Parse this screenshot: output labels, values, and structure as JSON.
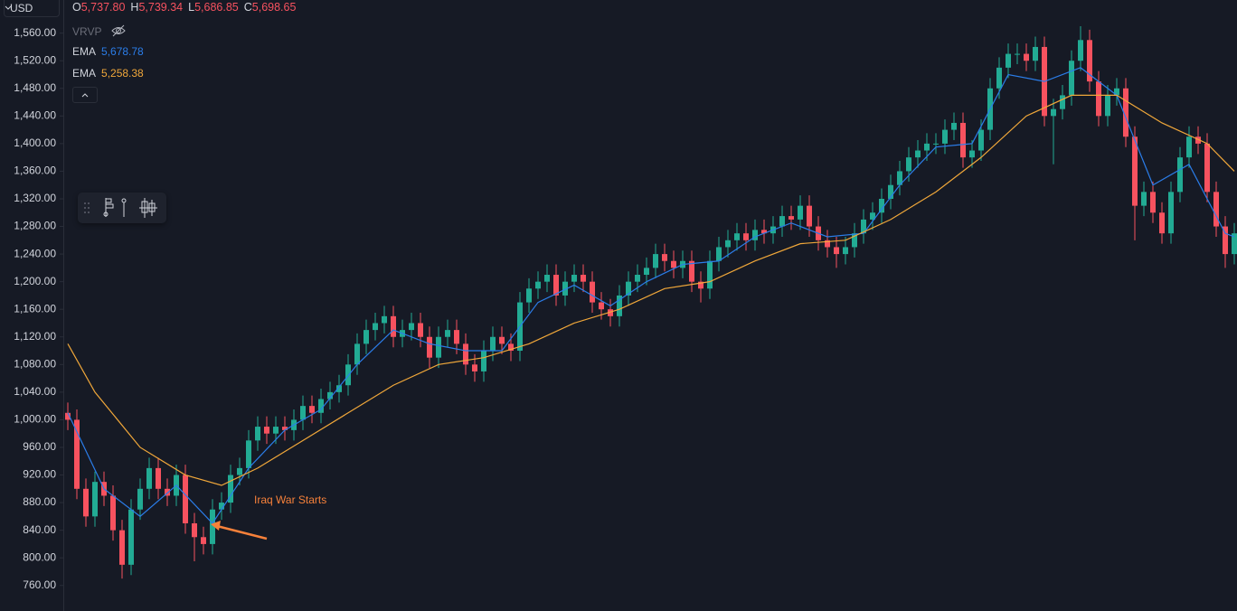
{
  "chart_data": {
    "type": "candlestick",
    "currency": "USD",
    "ohlc_legend": [
      {
        "label": "O",
        "value": "5,737.80"
      },
      {
        "label": "H",
        "value": "5,739.34"
      },
      {
        "label": "L",
        "value": "5,686.85"
      },
      {
        "label": "C",
        "value": "5,698.65"
      }
    ],
    "hidden_indicator": "VRVP",
    "up_color": "#22ab94",
    "down_color": "#f7525f",
    "open": [
      1010,
      1000,
      900,
      860,
      910,
      890,
      840,
      790,
      870,
      900,
      930,
      900,
      890,
      920,
      850,
      830,
      820,
      870,
      880,
      920,
      930,
      970,
      990,
      980,
      990,
      985,
      1000,
      1020,
      1010,
      1030,
      1040,
      1050,
      1080,
      1110,
      1130,
      1140,
      1150,
      1120,
      1130,
      1140,
      1120,
      1090,
      1120,
      1130,
      1110,
      1080,
      1070,
      1100,
      1120,
      1110,
      1100,
      1170,
      1190,
      1200,
      1210,
      1180,
      1200,
      1210,
      1200,
      1170,
      1160,
      1150,
      1180,
      1200,
      1210,
      1220,
      1240,
      1230,
      1220,
      1230,
      1200,
      1190,
      1230,
      1250,
      1260,
      1270,
      1260,
      1275,
      1270,
      1280,
      1295,
      1290,
      1310,
      1280,
      1260,
      1250,
      1240,
      1250,
      1270,
      1290,
      1300,
      1320,
      1340,
      1360,
      1380,
      1390,
      1400,
      1400,
      1420,
      1430,
      1380,
      1390,
      1420,
      1480,
      1510,
      1530,
      1530,
      1520,
      1540,
      1440,
      1450,
      1470,
      1520,
      1550,
      1490,
      1440,
      1470,
      1480,
      1410,
      1310,
      1330,
      1300,
      1270,
      1330,
      1380,
      1410,
      1400,
      1330,
      1280,
      1240
    ],
    "high": [
      1025,
      1015,
      915,
      925,
      925,
      905,
      855,
      885,
      915,
      945,
      945,
      915,
      935,
      935,
      865,
      845,
      885,
      895,
      935,
      945,
      985,
      1005,
      1005,
      1005,
      1005,
      1015,
      1035,
      1035,
      1045,
      1055,
      1065,
      1095,
      1125,
      1145,
      1155,
      1165,
      1165,
      1145,
      1155,
      1155,
      1135,
      1135,
      1145,
      1145,
      1125,
      1095,
      1115,
      1135,
      1135,
      1125,
      1185,
      1205,
      1215,
      1225,
      1225,
      1215,
      1225,
      1225,
      1215,
      1185,
      1175,
      1195,
      1215,
      1225,
      1235,
      1255,
      1255,
      1245,
      1245,
      1245,
      1215,
      1245,
      1265,
      1275,
      1285,
      1285,
      1290,
      1290,
      1295,
      1310,
      1310,
      1325,
      1325,
      1295,
      1275,
      1265,
      1265,
      1285,
      1305,
      1315,
      1335,
      1355,
      1375,
      1395,
      1405,
      1415,
      1415,
      1435,
      1445,
      1445,
      1405,
      1435,
      1495,
      1525,
      1545,
      1545,
      1545,
      1555,
      1555,
      1465,
      1485,
      1535,
      1570,
      1565,
      1505,
      1485,
      1495,
      1495,
      1425,
      1345,
      1345,
      1315,
      1345,
      1395,
      1425,
      1425,
      1415,
      1345,
      1295,
      1285
    ],
    "low": [
      985,
      885,
      845,
      845,
      875,
      825,
      770,
      775,
      855,
      885,
      885,
      875,
      875,
      835,
      795,
      805,
      805,
      855,
      865,
      905,
      915,
      955,
      965,
      965,
      970,
      970,
      985,
      995,
      995,
      1015,
      1025,
      1035,
      1065,
      1095,
      1115,
      1125,
      1105,
      1105,
      1115,
      1105,
      1075,
      1075,
      1105,
      1095,
      1065,
      1055,
      1055,
      1085,
      1095,
      1085,
      1085,
      1155,
      1175,
      1185,
      1165,
      1165,
      1185,
      1185,
      1155,
      1145,
      1135,
      1135,
      1165,
      1185,
      1195,
      1205,
      1215,
      1205,
      1205,
      1185,
      1170,
      1175,
      1215,
      1235,
      1245,
      1245,
      1245,
      1255,
      1255,
      1265,
      1275,
      1275,
      1265,
      1245,
      1235,
      1220,
      1225,
      1235,
      1255,
      1275,
      1285,
      1305,
      1325,
      1345,
      1365,
      1375,
      1385,
      1385,
      1405,
      1365,
      1365,
      1375,
      1405,
      1465,
      1495,
      1515,
      1505,
      1505,
      1425,
      1370,
      1435,
      1455,
      1505,
      1475,
      1425,
      1425,
      1455,
      1395,
      1260,
      1295,
      1285,
      1255,
      1255,
      1315,
      1365,
      1385,
      1315,
      1265,
      1220,
      1225
    ],
    "close": [
      1000,
      900,
      860,
      910,
      890,
      840,
      790,
      870,
      900,
      930,
      900,
      890,
      920,
      850,
      830,
      820,
      870,
      880,
      920,
      930,
      970,
      990,
      980,
      990,
      985,
      1000,
      1020,
      1010,
      1030,
      1040,
      1050,
      1080,
      1110,
      1130,
      1140,
      1150,
      1120,
      1130,
      1140,
      1120,
      1090,
      1120,
      1130,
      1110,
      1080,
      1070,
      1100,
      1120,
      1110,
      1100,
      1170,
      1190,
      1200,
      1210,
      1180,
      1200,
      1210,
      1200,
      1170,
      1160,
      1150,
      1180,
      1200,
      1210,
      1220,
      1240,
      1230,
      1220,
      1230,
      1200,
      1190,
      1230,
      1250,
      1260,
      1270,
      1260,
      1275,
      1270,
      1280,
      1295,
      1290,
      1310,
      1280,
      1260,
      1250,
      1240,
      1250,
      1270,
      1290,
      1300,
      1320,
      1340,
      1360,
      1380,
      1390,
      1400,
      1400,
      1420,
      1430,
      1380,
      1390,
      1420,
      1480,
      1510,
      1530,
      1530,
      1520,
      1540,
      1440,
      1450,
      1470,
      1520,
      1550,
      1490,
      1440,
      1470,
      1480,
      1410,
      1310,
      1330,
      1300,
      1270,
      1330,
      1380,
      1410,
      1400,
      1330,
      1280,
      1240,
      1270
    ],
    "overlays": [
      {
        "name": "EMA",
        "last_value": "5,678.78",
        "color": "#2b7de9",
        "x": [
          0,
          4,
          8,
          12,
          16,
          20,
          24,
          28,
          32,
          36,
          40,
          44,
          48,
          52,
          56,
          60,
          64,
          68,
          72,
          76,
          80,
          84,
          88,
          92,
          96,
          100,
          104,
          108,
          112,
          116,
          120,
          124,
          128,
          129
        ],
        "values": [
          1010,
          900,
          860,
          905,
          850,
          930,
          985,
          1015,
          1080,
          1130,
          1110,
          1100,
          1100,
          1170,
          1195,
          1165,
          1200,
          1225,
          1230,
          1265,
          1285,
          1265,
          1270,
          1340,
          1395,
          1400,
          1500,
          1490,
          1510,
          1470,
          1340,
          1370,
          1270,
          1265
        ]
      },
      {
        "name": "EMA",
        "last_value": "5,258.38",
        "color": "#f0a73a",
        "x": [
          0,
          3,
          8,
          13,
          17,
          21,
          26,
          31,
          36,
          41,
          46,
          51,
          56,
          61,
          66,
          71,
          76,
          81,
          86,
          91,
          96,
          101,
          106,
          111,
          116,
          121,
          126,
          129
        ],
        "values": [
          1110,
          1040,
          960,
          920,
          905,
          930,
          970,
          1010,
          1050,
          1080,
          1090,
          1110,
          1140,
          1160,
          1190,
          1200,
          1230,
          1255,
          1260,
          1290,
          1330,
          1380,
          1440,
          1470,
          1470,
          1430,
          1400,
          1360
        ]
      }
    ],
    "annotation": {
      "text": "Iraq War Starts",
      "color": "#f7813a"
    },
    "ylim": [
      723,
      1608
    ],
    "yticks": [
      {
        "value": 760,
        "label": "760.00"
      },
      {
        "value": 800,
        "label": "800.00"
      },
      {
        "value": 840,
        "label": "840.00"
      },
      {
        "value": 880,
        "label": "880.00"
      },
      {
        "value": 920,
        "label": "920.00"
      },
      {
        "value": 960,
        "label": "960.00"
      },
      {
        "value": 1000,
        "label": "1,000.00"
      },
      {
        "value": 1040,
        "label": "1,040.00"
      },
      {
        "value": 1080,
        "label": "1,080.00"
      },
      {
        "value": 1120,
        "label": "1,120.00"
      },
      {
        "value": 1160,
        "label": "1,160.00"
      },
      {
        "value": 1200,
        "label": "1,200.00"
      },
      {
        "value": 1240,
        "label": "1,240.00"
      },
      {
        "value": 1280,
        "label": "1,280.00"
      },
      {
        "value": 1320,
        "label": "1,320.00"
      },
      {
        "value": 1360,
        "label": "1,360.00"
      },
      {
        "value": 1400,
        "label": "1,400.00"
      },
      {
        "value": 1440,
        "label": "1,440.00"
      },
      {
        "value": 1480,
        "label": "1,480.00"
      },
      {
        "value": 1520,
        "label": "1,520.00"
      },
      {
        "value": 1560,
        "label": "1,560.00"
      }
    ],
    "grid": false
  }
}
